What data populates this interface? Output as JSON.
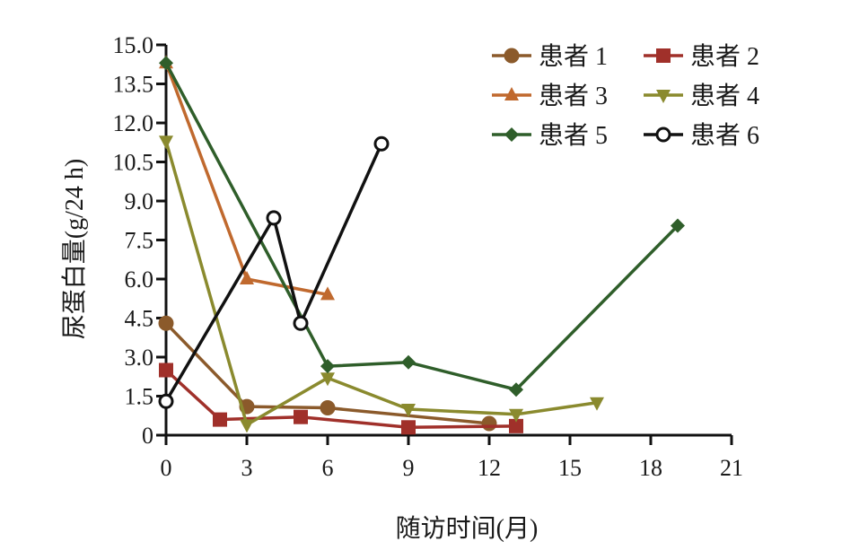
{
  "chart_data": {
    "type": "line",
    "xlabel": "随访时间(月)",
    "ylabel": "尿蛋白量(g/24 h)",
    "xlim": [
      0,
      21
    ],
    "ylim": [
      0,
      15
    ],
    "xticks": [
      "0",
      "3",
      "6",
      "9",
      "12",
      "15",
      "18",
      "21"
    ],
    "yticks": [
      "0",
      "1.5",
      "3.0",
      "4.5",
      "6.0",
      "7.5",
      "9.0",
      "10.5",
      "12.0",
      "13.5",
      "15.0"
    ],
    "grid": false,
    "legend_position": "top-right",
    "series": [
      {
        "name": "患者 1",
        "color": "#8B5A2B",
        "marker": "circle-filled",
        "x": [
          0,
          3,
          6,
          12
        ],
        "y": [
          4.3,
          1.1,
          1.05,
          0.45
        ]
      },
      {
        "name": "患者 2",
        "color": "#A0302A",
        "marker": "square",
        "x": [
          0,
          2,
          5,
          9,
          13
        ],
        "y": [
          2.5,
          0.6,
          0.7,
          0.3,
          0.35
        ]
      },
      {
        "name": "患者 3",
        "color": "#C0692E",
        "marker": "triangle-up",
        "x": [
          0,
          3,
          6
        ],
        "y": [
          14.3,
          6.0,
          5.4
        ]
      },
      {
        "name": "患者 4",
        "color": "#8A8A2E",
        "marker": "triangle-down",
        "x": [
          0,
          3,
          6,
          9,
          13,
          16
        ],
        "y": [
          11.3,
          0.4,
          2.2,
          1.0,
          0.8,
          1.25
        ]
      },
      {
        "name": "患者 5",
        "color": "#2F5E2A",
        "marker": "diamond",
        "x": [
          0,
          6,
          9,
          13,
          19
        ],
        "y": [
          14.3,
          2.65,
          2.8,
          1.75,
          8.05
        ]
      },
      {
        "name": "患者 6",
        "color": "#111111",
        "marker": "circle-open",
        "x": [
          0,
          4,
          5,
          8
        ],
        "y": [
          1.3,
          8.35,
          4.3,
          11.2
        ]
      }
    ]
  }
}
